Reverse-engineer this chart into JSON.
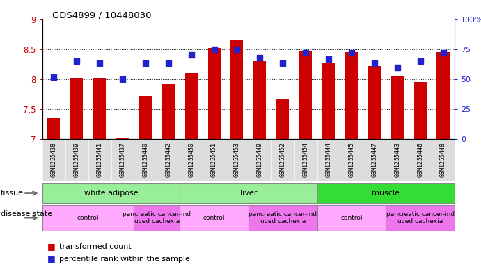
{
  "title": "GDS4899 / 10448030",
  "samples": [
    "GSM1255438",
    "GSM1255439",
    "GSM1255441",
    "GSM1255437",
    "GSM1255440",
    "GSM1255442",
    "GSM1255450",
    "GSM1255451",
    "GSM1255453",
    "GSM1255449",
    "GSM1255452",
    "GSM1255454",
    "GSM1255444",
    "GSM1255445",
    "GSM1255447",
    "GSM1255443",
    "GSM1255446",
    "GSM1255448"
  ],
  "transformed_count": [
    7.35,
    8.02,
    8.02,
    7.02,
    7.72,
    7.92,
    8.1,
    8.52,
    8.65,
    8.3,
    7.68,
    8.47,
    8.28,
    8.45,
    8.22,
    8.05,
    7.95,
    8.45
  ],
  "percentile_rank": [
    52,
    65,
    63,
    50,
    63,
    63,
    70,
    75,
    75,
    68,
    63,
    72,
    67,
    72,
    63,
    60,
    65,
    72
  ],
  "ylim_left": [
    7.0,
    9.0
  ],
  "ylim_right": [
    0,
    100
  ],
  "yticks_left": [
    7.0,
    7.5,
    8.0,
    8.5,
    9.0
  ],
  "ytick_labels_left": [
    "7",
    "7.5",
    "8",
    "8.5",
    "9"
  ],
  "yticks_right": [
    0,
    25,
    50,
    75,
    100
  ],
  "ytick_labels_right": [
    "0",
    "25",
    "50",
    "75",
    "100%"
  ],
  "bar_color": "#cc0000",
  "dot_color": "#2222cc",
  "tissue_groups": [
    {
      "label": "white adipose",
      "start": 0,
      "end": 6,
      "color": "#99ee99"
    },
    {
      "label": "liver",
      "start": 6,
      "end": 12,
      "color": "#99ee99"
    },
    {
      "label": "muscle",
      "start": 12,
      "end": 18,
      "color": "#33dd33"
    }
  ],
  "disease_groups": [
    {
      "label": "control",
      "start": 0,
      "end": 4,
      "color": "#ffaaff"
    },
    {
      "label": "pancreatic cancer-ind\nuced cachexia",
      "start": 4,
      "end": 6,
      "color": "#ee77ee"
    },
    {
      "label": "control",
      "start": 6,
      "end": 9,
      "color": "#ffaaff"
    },
    {
      "label": "pancreatic cancer-ind\nuced cachexia",
      "start": 9,
      "end": 12,
      "color": "#ee77ee"
    },
    {
      "label": "control",
      "start": 12,
      "end": 15,
      "color": "#ffaaff"
    },
    {
      "label": "pancreatic cancer-ind\nuced cachexia",
      "start": 15,
      "end": 18,
      "color": "#ee77ee"
    }
  ],
  "bar_width": 0.55,
  "dot_size": 40,
  "xtick_label_bg": "#dddddd"
}
